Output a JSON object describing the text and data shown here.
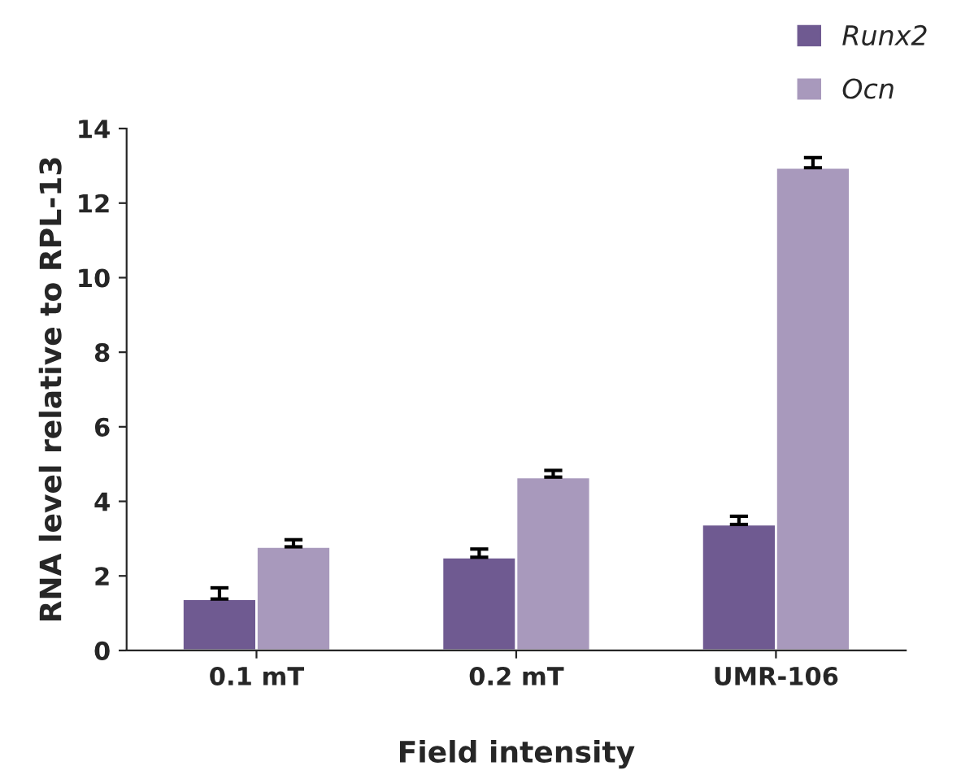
{
  "chart_data": {
    "type": "bar",
    "xlabel": "Field intensity",
    "ylabel": "RNA level relative to RPL-13",
    "categories": [
      "0.1 mT",
      "0.2 mT",
      "UMR-106"
    ],
    "series": [
      {
        "name": "Runx2",
        "color": "#6f5a91",
        "values": [
          1.38,
          2.5,
          3.38
        ],
        "errors": [
          [
            1.38,
            1.68
          ],
          [
            2.5,
            2.72
          ],
          [
            3.38,
            3.6
          ]
        ]
      },
      {
        "name": "Ocn",
        "color": "#a899bc",
        "values": [
          2.78,
          4.65,
          12.95
        ],
        "errors": [
          [
            2.78,
            2.97
          ],
          [
            4.65,
            4.83
          ],
          [
            12.95,
            13.22
          ]
        ]
      }
    ],
    "ylim": [
      0,
      14
    ],
    "yticks": [
      0,
      2,
      4,
      6,
      8,
      10,
      12,
      14
    ],
    "grid": false,
    "legend": "top right"
  }
}
